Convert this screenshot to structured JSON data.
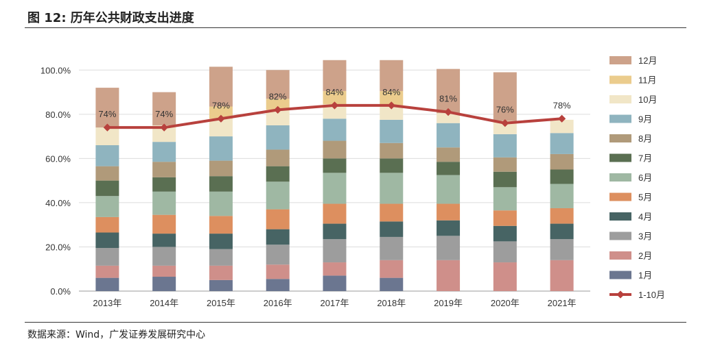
{
  "figure": {
    "title": "图  12:  历年公共财政支出进度",
    "source": "数据来源：Wind，广发证券发展研究中心"
  },
  "chart_data": {
    "type": "bar",
    "stacked": true,
    "categories": [
      "2013年",
      "2014年",
      "2015年",
      "2016年",
      "2017年",
      "2018年",
      "2019年",
      "2020年",
      "2021年"
    ],
    "ylim": [
      0,
      110
    ],
    "yticks": [
      0,
      20,
      40,
      60,
      80,
      100
    ],
    "ytick_labels": [
      "0.0%",
      "20.0%",
      "40.0%",
      "60.0%",
      "80.0%",
      "100.0%"
    ],
    "series": [
      {
        "name": "1月",
        "color": "#6b7690",
        "values": [
          6,
          6.5,
          5,
          5.5,
          7,
          6,
          0,
          0,
          0
        ]
      },
      {
        "name": "2月",
        "color": "#cf8f8a",
        "values": [
          5.5,
          5,
          6.5,
          6.5,
          6,
          8,
          14,
          13,
          14
        ]
      },
      {
        "name": "3月",
        "color": "#9d9d9d",
        "values": [
          8,
          8.5,
          7.5,
          9,
          10.5,
          10.5,
          11,
          9.5,
          9.5
        ]
      },
      {
        "name": "4月",
        "color": "#476464",
        "values": [
          7,
          6,
          7,
          7,
          7,
          7,
          7,
          7,
          7
        ]
      },
      {
        "name": "5月",
        "color": "#dd8f5f",
        "values": [
          7,
          8.5,
          8,
          9,
          9,
          8,
          7.5,
          7,
          7
        ]
      },
      {
        "name": "6月",
        "color": "#9fb8a3",
        "values": [
          9.5,
          10.5,
          11,
          12.5,
          14,
          14,
          13,
          10.5,
          11
        ]
      },
      {
        "name": "7月",
        "color": "#5a6f52",
        "values": [
          7,
          6.5,
          7,
          7,
          6.5,
          6.5,
          6,
          7,
          6.5
        ]
      },
      {
        "name": "8月",
        "color": "#b09a7a",
        "values": [
          6.5,
          7,
          7,
          7.5,
          8,
          7,
          6.5,
          6.5,
          7
        ]
      },
      {
        "name": "9月",
        "color": "#8fb4bf",
        "values": [
          9.5,
          9,
          11,
          11,
          10,
          10.5,
          11,
          10.5,
          9.5
        ]
      },
      {
        "name": "10月",
        "color": "#f1e6c7",
        "values": [
          8,
          7.5,
          8,
          7,
          6.5,
          6,
          4.5,
          6,
          6
        ]
      },
      {
        "name": "11月",
        "color": "#ebcc8d",
        "values": [
          0,
          0,
          5.5,
          5,
          6,
          7,
          0,
          0,
          0
        ]
      },
      {
        "name": "12月",
        "color": "#cda28a",
        "values": [
          18,
          15,
          18,
          13,
          14,
          14,
          20,
          22,
          0
        ]
      }
    ],
    "line": {
      "name": "1-10月",
      "color": "#b8413d",
      "values": [
        74,
        74,
        78,
        82,
        84,
        84,
        81,
        76,
        78
      ],
      "labels": [
        "74%",
        "74%",
        "78%",
        "82%",
        "84%",
        "84%",
        "81%",
        "76%",
        "78%"
      ]
    },
    "legend_position": "right"
  }
}
